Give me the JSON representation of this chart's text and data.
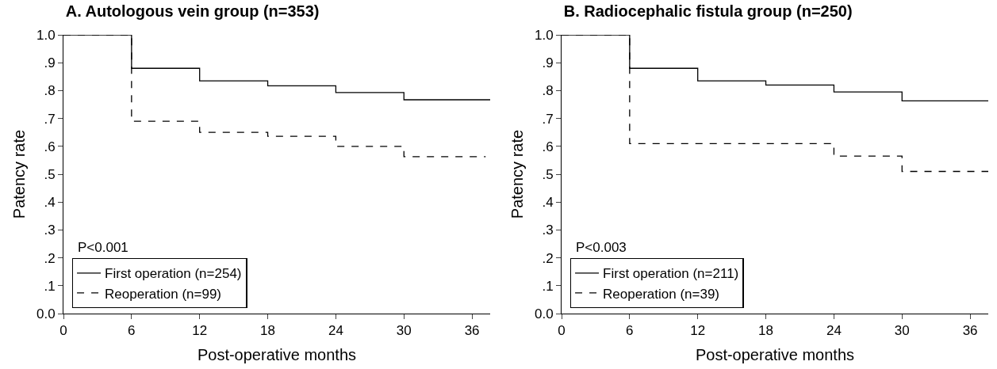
{
  "chart_data": [
    {
      "type": "step",
      "title": "A. Autologous vein group (n=353)",
      "xlabel": "Post-operative months",
      "ylabel": "Patency rate",
      "series": [
        {
          "name": "First operation (n=254)",
          "color": "#000000",
          "line_style": "solid",
          "x": [
            0,
            6,
            12,
            18,
            24,
            30,
            37.6
          ],
          "values": [
            1.0,
            0.88,
            0.835,
            0.817,
            0.793,
            0.767,
            0.767
          ]
        },
        {
          "name": "Reoperation (n=99)",
          "color": "#000000",
          "line_style": "dashed",
          "x": [
            0,
            6,
            12,
            18,
            24,
            30,
            37.2
          ],
          "values": [
            1.0,
            0.69,
            0.65,
            0.636,
            0.6,
            0.563,
            0.563
          ]
        }
      ],
      "xlim": [
        0,
        37.6
      ],
      "xticks": [
        0,
        6,
        12,
        18,
        24,
        30,
        36
      ],
      "ylim": [
        0,
        1
      ],
      "yticks": [
        {
          "value": 0,
          "label": "0.0"
        },
        {
          "value": 0.1,
          "label": ".1"
        },
        {
          "value": 0.2,
          "label": ".2"
        },
        {
          "value": 0.3,
          "label": ".3"
        },
        {
          "value": 0.4,
          "label": ".4"
        },
        {
          "value": 0.5,
          "label": ".5"
        },
        {
          "value": 0.6,
          "label": ".6"
        },
        {
          "value": 0.7,
          "label": ".7"
        },
        {
          "value": 0.8,
          "label": ".8"
        },
        {
          "value": 0.9,
          "label": ".9"
        },
        {
          "value": 1,
          "label": "1.0"
        }
      ],
      "annotations": [
        "P<0.001"
      ],
      "legend": "bottom left",
      "grid": false,
      "marker": "none"
    },
    {
      "type": "step",
      "title": "B. Radiocephalic fistula group (n=250)",
      "xlabel": "Post-operative months",
      "ylabel": "Patency rate",
      "series": [
        {
          "name": "First operation (n=211)",
          "color": "#000000",
          "line_style": "solid",
          "x": [
            0,
            6,
            12,
            18,
            24,
            30,
            37.6
          ],
          "values": [
            1.0,
            0.88,
            0.835,
            0.82,
            0.795,
            0.763,
            0.763
          ]
        },
        {
          "name": "Reoperation (n=39)",
          "color": "#000000",
          "line_style": "dashed",
          "x": [
            0,
            6,
            24,
            30,
            37.6
          ],
          "values": [
            1.0,
            0.61,
            0.565,
            0.51,
            0.51
          ]
        }
      ],
      "xlim": [
        0,
        37.6
      ],
      "xticks": [
        0,
        6,
        12,
        18,
        24,
        30,
        36
      ],
      "ylim": [
        0,
        1
      ],
      "yticks": [
        {
          "value": 0,
          "label": "0.0"
        },
        {
          "value": 0.1,
          "label": ".1"
        },
        {
          "value": 0.2,
          "label": ".2"
        },
        {
          "value": 0.3,
          "label": ".3"
        },
        {
          "value": 0.4,
          "label": ".4"
        },
        {
          "value": 0.5,
          "label": ".5"
        },
        {
          "value": 0.6,
          "label": ".6"
        },
        {
          "value": 0.7,
          "label": ".7"
        },
        {
          "value": 0.8,
          "label": ".8"
        },
        {
          "value": 0.9,
          "label": ".9"
        },
        {
          "value": 1,
          "label": "1.0"
        }
      ],
      "annotations": [
        "P<0.003"
      ],
      "legend": "bottom left",
      "grid": false,
      "marker": "none"
    }
  ]
}
